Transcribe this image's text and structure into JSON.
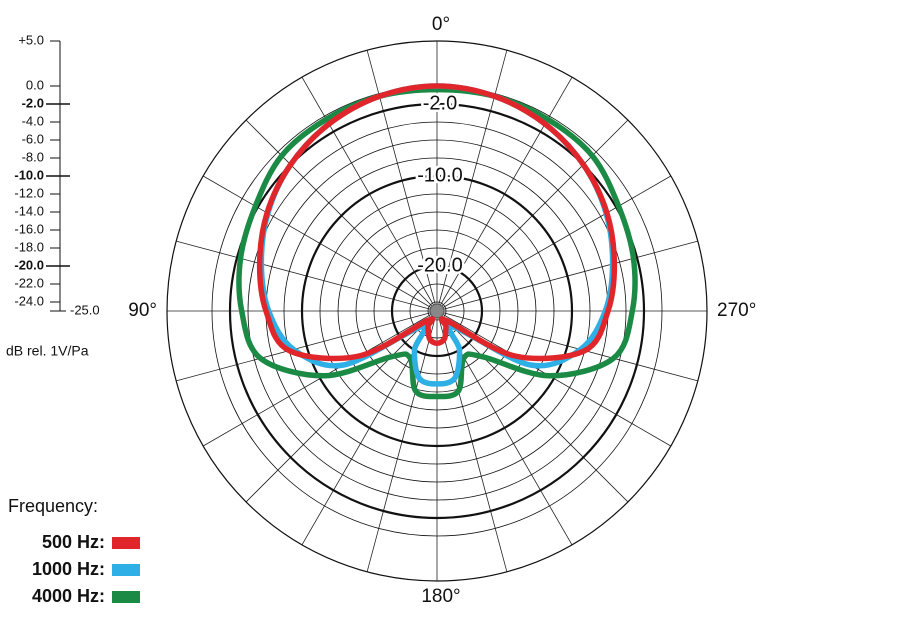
{
  "chart_data": {
    "type": "polar",
    "theta": [
      0,
      15,
      30,
      45,
      60,
      75,
      90,
      105,
      120,
      135,
      150,
      165,
      180,
      195,
      210,
      225,
      240,
      255,
      270,
      285,
      300,
      315,
      330,
      345
    ],
    "series": [
      {
        "name": "500 Hz:",
        "color": "#e0262b",
        "values": [
          0,
          -0.3,
          -1,
          -2,
          -3.2,
          -4.6,
          -6,
          -8,
          -15,
          -23.5,
          -23,
          -21.8,
          -21.4,
          -21.8,
          -23,
          -23.5,
          -15,
          -8,
          -6,
          -4.6,
          -3.2,
          -2,
          -1,
          -0.3
        ]
      },
      {
        "name": "1000 Hz:",
        "color": "#2eb0e6",
        "values": [
          0,
          -0.3,
          -1,
          -2,
          -3.3,
          -4.8,
          -6.3,
          -8.5,
          -13,
          -22.5,
          -20,
          -17.3,
          -16.9,
          -17.3,
          -20,
          -22.5,
          -13,
          -8.5,
          -6.3,
          -4.8,
          -3.3,
          -2,
          -1,
          -0.3
        ]
      },
      {
        "name": "4000 Hz:",
        "color": "#1a8a45",
        "values": [
          -0.4,
          -0.3,
          -0.4,
          -0.6,
          -1.7,
          -2.4,
          -3.3,
          -4.7,
          -10.6,
          -17.8,
          -19,
          -15.8,
          -15.5,
          -15.8,
          -19,
          -17.8,
          -10.6,
          -4.7,
          -3.3,
          -2.4,
          -1.7,
          -0.6,
          -0.4,
          -0.3
        ]
      }
    ],
    "rlim": [
      -25,
      5
    ],
    "rticks": [
      {
        "value": 5,
        "label": "+5.0"
      },
      {
        "value": 0,
        "label": "0.0"
      },
      {
        "value": -2,
        "label": "-2.0"
      },
      {
        "value": -4,
        "label": "-4.0"
      },
      {
        "value": -6,
        "label": "-6.0"
      },
      {
        "value": -8,
        "label": "-8.0"
      },
      {
        "value": -10,
        "label": "-10.0"
      },
      {
        "value": -12,
        "label": "-12.0"
      },
      {
        "value": -14,
        "label": "-14.0"
      },
      {
        "value": -16,
        "label": "-16.0"
      },
      {
        "value": -18,
        "label": "-18.0"
      },
      {
        "value": -20,
        "label": "-20.0"
      },
      {
        "value": -22,
        "label": "-22.0"
      },
      {
        "value": -24,
        "label": "-24.0"
      },
      {
        "value": -25,
        "label": "-25.0"
      }
    ],
    "ring_labels": [
      {
        "value": -2,
        "label": "-2.0"
      },
      {
        "value": -10,
        "label": "-10.0"
      },
      {
        "value": -20,
        "label": "-20.0"
      }
    ],
    "angle_ticks": [
      0,
      15,
      30,
      45,
      60,
      75,
      90,
      105,
      120,
      135,
      150,
      165,
      180,
      195,
      210,
      225,
      240,
      255,
      270,
      285,
      300,
      315,
      330,
      345
    ],
    "angle_labels": [
      {
        "value": 0,
        "label": "0°"
      },
      {
        "value": 90,
        "label": "90°"
      },
      {
        "value": 180,
        "label": "180°"
      },
      {
        "value": 270,
        "label": "270°"
      }
    ],
    "rlabel": "dB rel. 1V/Pa",
    "legend_title": "Frequency:"
  }
}
